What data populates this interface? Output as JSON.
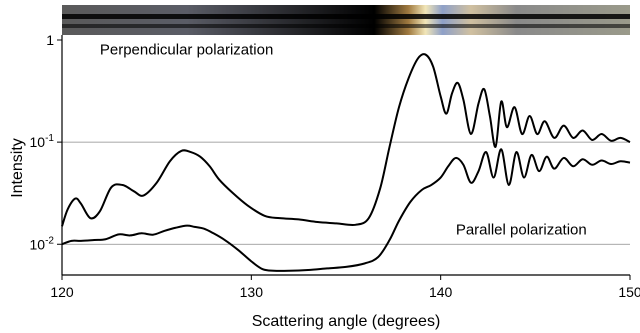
{
  "chart_data": {
    "type": "line",
    "xlabel": "Scattering angle (degrees)",
    "ylabel": "Intensity",
    "xlim": [
      120,
      150
    ],
    "ylim": [
      0.005,
      1.5
    ],
    "y_scale": "log",
    "x_ticks": [
      {
        "value": 120,
        "label": "120"
      },
      {
        "value": 130,
        "label": "130"
      },
      {
        "value": 140,
        "label": "140"
      },
      {
        "value": 150,
        "label": "150"
      }
    ],
    "y_ticks": [
      {
        "value": 1,
        "label": "1",
        "base": "",
        "exp": ""
      },
      {
        "value": 0.1,
        "label": "",
        "base": "10",
        "exp": "-1"
      },
      {
        "value": 0.01,
        "label": "",
        "base": "10",
        "exp": "-2"
      }
    ],
    "gridlines_y": [
      0.1,
      0.01
    ],
    "color_strip": {
      "description_colors": [
        "#6a6a6a",
        "#1a1a1a",
        "#000000",
        "#f0e4b0",
        "#9fb0d0",
        "#9a9a8a"
      ]
    },
    "annotations": [
      {
        "text": "Perpendicular polarization",
        "x": 122.0,
        "y": 0.72
      },
      {
        "text": "Parallel polarization",
        "x": 140.8,
        "y": 0.0125
      }
    ],
    "series": [
      {
        "x": [
          120,
          120.3,
          120.7,
          121.0,
          121.5,
          122.0,
          122.6,
          123.2,
          123.8,
          124.3,
          125.0,
          125.7,
          126.3,
          126.8,
          127.3,
          127.8,
          128.3,
          129.0,
          129.8,
          130.7,
          131.5,
          132.5,
          133.5,
          134.5,
          135.5,
          136.2,
          136.8,
          137.3,
          137.8,
          138.3,
          138.8,
          139.2,
          139.6,
          140.0,
          140.3,
          140.6,
          140.9,
          141.2,
          141.6,
          142.0,
          142.3,
          142.6,
          142.9,
          143.2,
          143.5,
          143.9,
          144.3,
          144.7,
          145.1,
          145.5,
          146.0,
          146.5,
          147.0,
          147.5,
          148.0,
          148.5,
          149.0,
          149.5,
          150
        ],
        "y": [
          0.015,
          0.022,
          0.028,
          0.025,
          0.018,
          0.021,
          0.036,
          0.038,
          0.033,
          0.03,
          0.04,
          0.065,
          0.082,
          0.08,
          0.072,
          0.058,
          0.043,
          0.032,
          0.024,
          0.019,
          0.018,
          0.0175,
          0.0165,
          0.016,
          0.0155,
          0.018,
          0.035,
          0.09,
          0.22,
          0.42,
          0.66,
          0.72,
          0.55,
          0.28,
          0.19,
          0.3,
          0.38,
          0.26,
          0.12,
          0.24,
          0.33,
          0.18,
          0.09,
          0.25,
          0.14,
          0.22,
          0.12,
          0.18,
          0.12,
          0.16,
          0.11,
          0.145,
          0.11,
          0.13,
          0.105,
          0.12,
          0.103,
          0.11,
          0.1
        ]
      },
      {
        "x": [
          120,
          120.5,
          121.0,
          121.7,
          122.3,
          123.0,
          123.6,
          124.2,
          124.8,
          125.4,
          126.0,
          126.6,
          127.0,
          127.5,
          128.0,
          128.6,
          129.3,
          130.0,
          130.6,
          131.2,
          132.0,
          133.0,
          134.0,
          135.0,
          136.0,
          136.7,
          137.3,
          137.8,
          138.4,
          139.0,
          139.5,
          140.0,
          140.4,
          140.8,
          141.2,
          141.6,
          142.0,
          142.4,
          142.8,
          143.2,
          143.6,
          144.0,
          144.4,
          144.8,
          145.2,
          145.6,
          146.0,
          146.5,
          147.0,
          147.5,
          148.0,
          148.5,
          149.0,
          149.5,
          150
        ],
        "y": [
          0.01,
          0.0108,
          0.0108,
          0.011,
          0.0112,
          0.0125,
          0.0122,
          0.0128,
          0.0124,
          0.0135,
          0.0145,
          0.0152,
          0.0148,
          0.0142,
          0.0128,
          0.011,
          0.0088,
          0.0068,
          0.0057,
          0.0055,
          0.0055,
          0.0056,
          0.0058,
          0.006,
          0.0065,
          0.0075,
          0.011,
          0.017,
          0.026,
          0.034,
          0.038,
          0.045,
          0.058,
          0.07,
          0.06,
          0.04,
          0.052,
          0.08,
          0.045,
          0.085,
          0.038,
          0.08,
          0.045,
          0.075,
          0.052,
          0.072,
          0.055,
          0.07,
          0.058,
          0.068,
          0.06,
          0.066,
          0.061,
          0.065,
          0.063
        ]
      }
    ]
  }
}
